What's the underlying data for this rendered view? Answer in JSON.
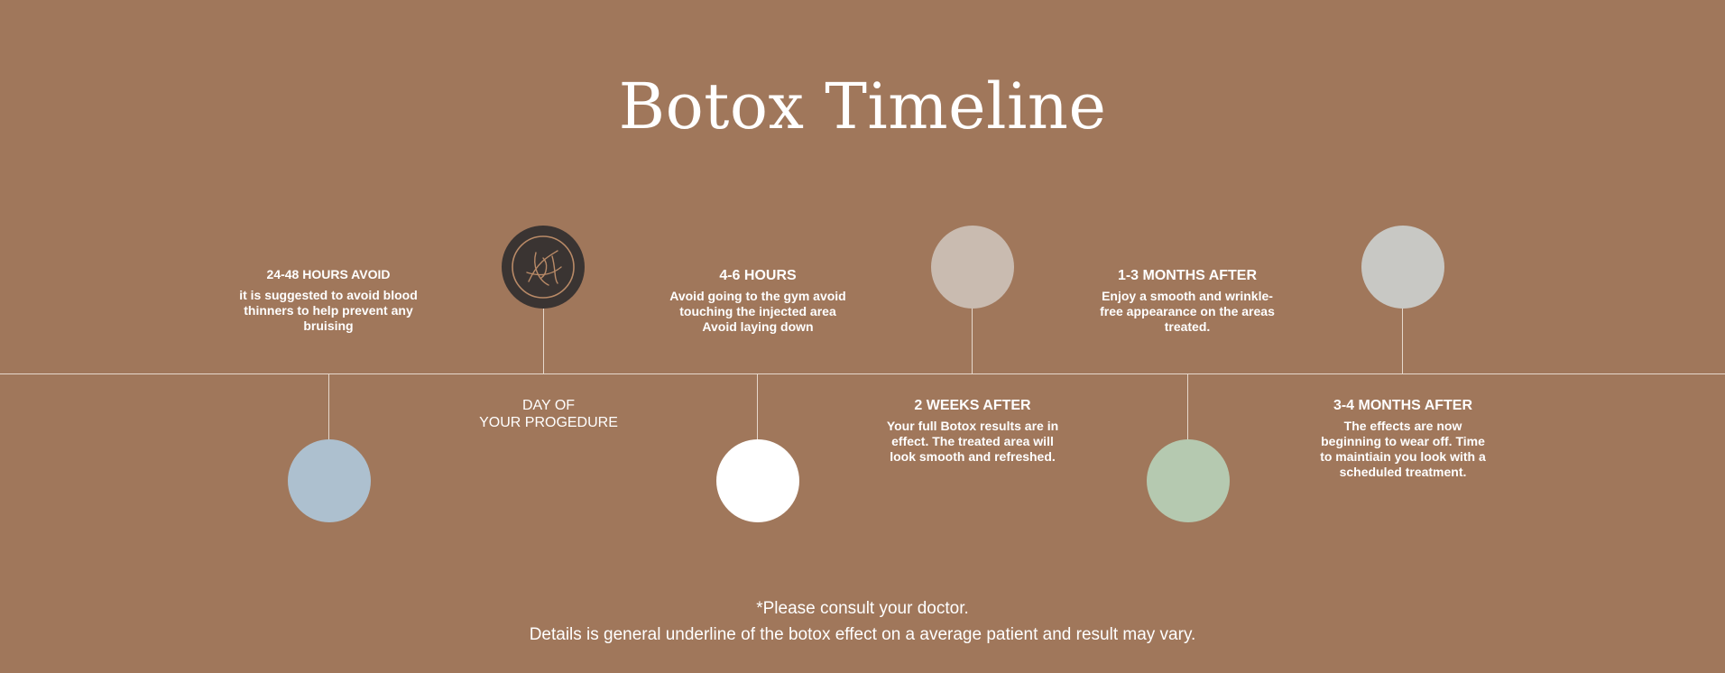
{
  "title": "Botox Timeline",
  "colors": {
    "background": "#a0775b",
    "line": "#e6d8cc",
    "logo_dot": "#3a3432",
    "logo_stroke": "#b98a67"
  },
  "steps": [
    {
      "position": "below",
      "dot_color": "#adc0cf",
      "heading": "24-48 HOURS AVOID",
      "body": [
        "it is suggested to avoid blood",
        "thinners to help prevent any",
        "bruising"
      ]
    },
    {
      "position": "above",
      "dot_color": "#3a3432",
      "icon": "logo-monogram-icon",
      "heading_lines": [
        "DAY OF",
        "YOUR PROGEDURE"
      ]
    },
    {
      "position": "below",
      "dot_color": "#ffffff",
      "heading": "4-6 HOURS",
      "body": [
        "Avoid going to the gym avoid",
        "touching the injected area",
        "Avoid laying down"
      ]
    },
    {
      "position": "above",
      "dot_color": "#c9bbb0",
      "heading": "2 WEEKS AFTER",
      "body": [
        "Your full Botox results are in",
        "effect. The treated area will",
        "look smooth and refreshed."
      ]
    },
    {
      "position": "below",
      "dot_color": "#b5c9b0",
      "heading": "1-3 MONTHS AFTER",
      "body": [
        "Enjoy a smooth and wrinkle-",
        "free appearance on the areas",
        "treated."
      ]
    },
    {
      "position": "above",
      "dot_color": "#c8c8c4",
      "heading": "3-4 MONTHS AFTER",
      "body": [
        "The effects are now",
        "beginning to wear off. Time",
        "to maintiain you look with a",
        "scheduled treatment."
      ]
    }
  ],
  "footer": {
    "line1": "*Please consult your doctor.",
    "line2": "Details is general underline of the botox effect on a average patient and result may vary."
  }
}
